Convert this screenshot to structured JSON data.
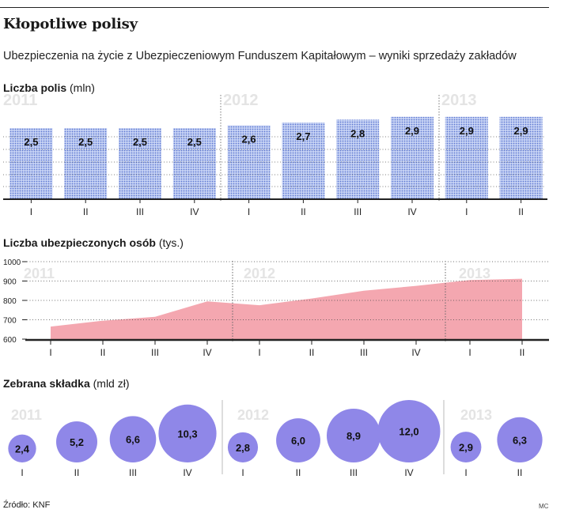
{
  "title": "Kłopotliwe polisy",
  "subtitle": "Ubezpieczenia na życie z Ubezpieczeniowym Funduszem Kapitałowym – wyniki sprzedaży zakładów",
  "source": "Źródło: KNF",
  "credit": "MC",
  "colors": {
    "bar": "#9fb3e8",
    "area": "#f4a7b0",
    "bubble": "#8f87e8",
    "year": "#e4e4e4",
    "grid": "#888888"
  },
  "chart_data": [
    {
      "type": "bar",
      "title_bold": "Liczba polis",
      "title_unit": "(mln)",
      "categories": [
        "I",
        "II",
        "III",
        "IV",
        "I",
        "II",
        "III",
        "IV",
        "I",
        "II"
      ],
      "values": [
        2.5,
        2.5,
        2.5,
        2.5,
        2.6,
        2.7,
        2.8,
        2.9,
        2.9,
        2.9
      ],
      "value_labels": [
        "2,5",
        "2,5",
        "2,5",
        "2,5",
        "2,6",
        "2,7",
        "2,8",
        "2,9",
        "2,9",
        "2,9"
      ],
      "years": [
        {
          "label": "2011",
          "start": 0
        },
        {
          "label": "2012",
          "start": 4
        },
        {
          "label": "2013",
          "start": 8
        }
      ],
      "ylim": [
        0,
        3.2
      ]
    },
    {
      "type": "area",
      "title_bold": "Liczba ubezpieczonych osób",
      "title_unit": "(tys.)",
      "categories": [
        "I",
        "II",
        "III",
        "IV",
        "I",
        "II",
        "III",
        "IV",
        "I",
        "II"
      ],
      "values": [
        665,
        695,
        715,
        795,
        775,
        810,
        850,
        875,
        905,
        912
      ],
      "yticks": [
        600,
        700,
        800,
        900,
        1000
      ],
      "ylim": [
        600,
        1000
      ],
      "years": [
        {
          "label": "2011",
          "start": 0
        },
        {
          "label": "2012",
          "start": 4
        },
        {
          "label": "2013",
          "start": 8
        }
      ]
    },
    {
      "type": "bubble",
      "title_bold": "Zebrana składka",
      "title_unit": "(mld zł)",
      "categories": [
        "I",
        "II",
        "III",
        "IV",
        "I",
        "II",
        "III",
        "IV",
        "I",
        "II"
      ],
      "values": [
        2.4,
        5.2,
        6.6,
        10.3,
        2.8,
        6.0,
        8.9,
        12.0,
        2.9,
        6.3
      ],
      "value_labels": [
        "2,4",
        "5,2",
        "6,6",
        "10,3",
        "2,8",
        "6,0",
        "8,9",
        "12,0",
        "2,9",
        "6,3"
      ],
      "years": [
        {
          "label": "2011",
          "start": 0
        },
        {
          "label": "2012",
          "start": 4
        },
        {
          "label": "2013",
          "start": 8
        }
      ]
    }
  ]
}
